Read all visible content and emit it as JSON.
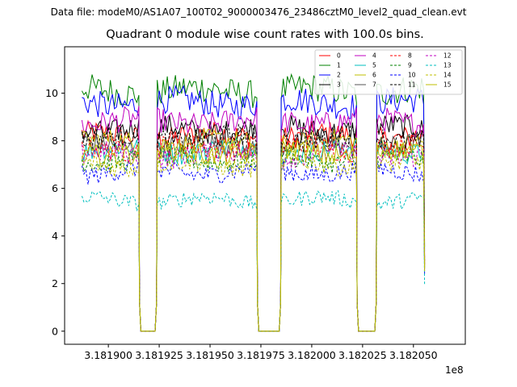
{
  "header": {
    "supertitle": "Data file: modeM0/AS1A07_100T02_9000003476_23486cztM0_level2_quad_clean.evt"
  },
  "chart_data": {
    "type": "line",
    "title": "Quadrant 0 module wise count rates with 100.0s bins.",
    "xlabel": "",
    "ylabel": "",
    "x_offset_label": "1e8",
    "xlim": [
      318187850,
      318207550
    ],
    "ylim": [
      -0.55,
      11.95
    ],
    "xticks": [
      318190000,
      318192500,
      318195000,
      318197500,
      318200000,
      318202500,
      318205000
    ],
    "xtick_labels": [
      "3.181900",
      "3.181925",
      "3.181950",
      "3.181975",
      "3.182000",
      "3.182025",
      "3.182050"
    ],
    "yticks": [
      0,
      2,
      4,
      6,
      8,
      10
    ],
    "ytick_labels": [
      "0",
      "2",
      "4",
      "6",
      "8",
      "10"
    ],
    "bin_seconds": 100,
    "segments": [
      {
        "start": 318188700,
        "end": 318191500
      },
      {
        "start": 318192400,
        "end": 318197300
      },
      {
        "start": 318198500,
        "end": 318202200
      },
      {
        "start": 318203200,
        "end": 318205500
      }
    ],
    "series": [
      {
        "name": "0",
        "color": "#ff0000",
        "dash": "solid",
        "level": 8.2
      },
      {
        "name": "1",
        "color": "#008000",
        "dash": "solid",
        "level": 10.1
      },
      {
        "name": "2",
        "color": "#0000ff",
        "dash": "solid",
        "level": 9.6
      },
      {
        "name": "3",
        "color": "#000000",
        "dash": "solid",
        "level": 8.5
      },
      {
        "name": "4",
        "color": "#c000c0",
        "dash": "solid",
        "level": 8.8
      },
      {
        "name": "5",
        "color": "#00bfbf",
        "dash": "solid",
        "level": 7.6
      },
      {
        "name": "6",
        "color": "#bfbf00",
        "dash": "solid",
        "level": 7.9
      },
      {
        "name": "7",
        "color": "#555555",
        "dash": "solid",
        "level": 7.8
      },
      {
        "name": "8",
        "color": "#ff0000",
        "dash": "dashed",
        "level": 7.7
      },
      {
        "name": "9",
        "color": "#008000",
        "dash": "dashed",
        "level": 7.2
      },
      {
        "name": "10",
        "color": "#0000ff",
        "dash": "dashed",
        "level": 6.7
      },
      {
        "name": "11",
        "color": "#000000",
        "dash": "dashed",
        "level": 8.1
      },
      {
        "name": "12",
        "color": "#c000c0",
        "dash": "dashed",
        "level": 7.4
      },
      {
        "name": "13",
        "color": "#00bfbf",
        "dash": "dashed",
        "level": 5.5
      },
      {
        "name": "14",
        "color": "#bfbf00",
        "dash": "dashed",
        "level": 7.0
      },
      {
        "name": "15",
        "color": "#bfbf00",
        "dash": "solid",
        "level": 7.5
      }
    ],
    "legend": {
      "position": "top-right",
      "columns": 4
    }
  }
}
